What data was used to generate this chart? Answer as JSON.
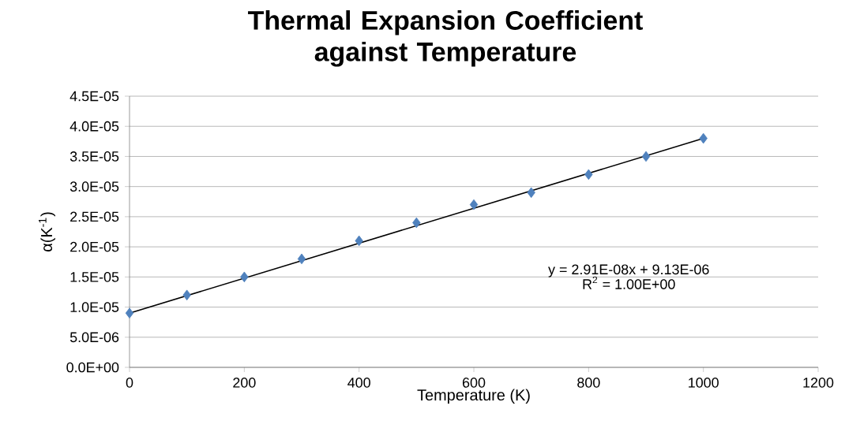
{
  "chart_data": {
    "type": "scatter",
    "title": "Thermal Expansion Coefficient against Temperature",
    "xlabel": "Temperature (K)",
    "ylabel": "α(K$^{-1}$)",
    "xlim": [
      0,
      1200
    ],
    "xticks": [
      0,
      200,
      400,
      600,
      800,
      1000,
      1200
    ],
    "ylim": [
      0,
      4.5e-05
    ],
    "yticks": [
      {
        "value": 0,
        "label": "0.0E+00"
      },
      {
        "value": 5e-06,
        "label": "5.0E-06"
      },
      {
        "value": 1e-05,
        "label": "1.0E-05"
      },
      {
        "value": 1.5e-05,
        "label": "1.5E-05"
      },
      {
        "value": 2e-05,
        "label": "2.0E-05"
      },
      {
        "value": 2.5e-05,
        "label": "2.5E-05"
      },
      {
        "value": 3e-05,
        "label": "3.0E-05"
      },
      {
        "value": 3.5e-05,
        "label": "3.5E-05"
      },
      {
        "value": 4e-05,
        "label": "4.0E-05"
      },
      {
        "value": 4.5e-05,
        "label": "4.5E-05"
      }
    ],
    "grid": "y",
    "series": [
      {
        "marker": "diamond",
        "color": "#4f81bd",
        "x": [
          0,
          100,
          200,
          300,
          400,
          500,
          600,
          700,
          800,
          900,
          1000
        ],
        "values": [
          9e-06,
          1.2e-05,
          1.5e-05,
          1.8e-05,
          2.1e-05,
          2.4e-05,
          2.7e-05,
          2.9e-05,
          3.2e-05,
          3.5e-05,
          3.8e-05
        ]
      },
      {
        "type": "line",
        "marker": "none",
        "line_style": "solid",
        "color": "#000000",
        "x": [
          0,
          1000
        ],
        "values": [
          9e-06,
          3.8e-05
        ]
      }
    ],
    "annotations": [
      "y = 2.91E-08x + 9.13E-06",
      "R$^{2}$ = 1.00E+00"
    ]
  }
}
